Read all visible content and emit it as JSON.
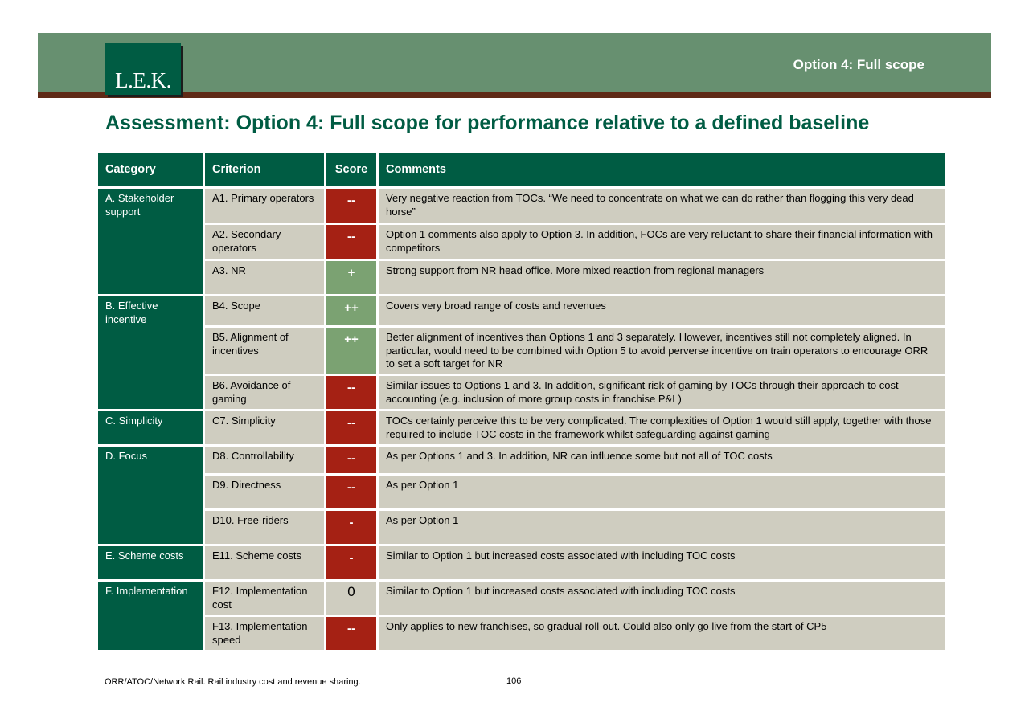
{
  "header": {
    "logo_text": "L.E.K.",
    "section_label": "Option 4: Full scope"
  },
  "title": "Assessment: Option 4: Full scope for performance relative to a defined baseline",
  "table": {
    "columns": {
      "category": "Category",
      "criterion": "Criterion",
      "score": "Score",
      "comments": "Comments"
    },
    "groups": [
      {
        "category": "A. Stakeholder support",
        "rows": [
          {
            "criterion": "A1. Primary operators",
            "score": "--",
            "tone": "neg",
            "comment": "Very negative reaction from TOCs. “We need to concentrate on what we can do rather than flogging this very dead horse”"
          },
          {
            "criterion": "A2. Secondary operators",
            "score": "--",
            "tone": "neg",
            "comment": "Option 1 comments also apply to Option 3. In addition, FOCs are very reluctant to share their financial information with competitors"
          },
          {
            "criterion": "A3. NR",
            "score": "+",
            "tone": "pos",
            "comment": "Strong support from NR head office. More mixed reaction from regional managers"
          }
        ]
      },
      {
        "category": "B. Effective incentive",
        "rows": [
          {
            "criterion": "B4. Scope",
            "score": "++",
            "tone": "pos",
            "comment": "Covers very broad range of costs and revenues"
          },
          {
            "criterion": "B5. Alignment of incentives",
            "score": "++",
            "tone": "pos",
            "comment": "Better alignment of incentives than Options 1 and 3 separately. However, incentives still not completely aligned. In particular, would need to be combined with Option 5 to avoid perverse incentive on train operators to encourage ORR to set a soft target for NR"
          },
          {
            "criterion": "B6. Avoidance of gaming",
            "score": "--",
            "tone": "neg",
            "comment": "Similar issues to Options 1 and 3. In addition, significant risk of gaming by TOCs through their approach to cost accounting (e.g. inclusion of more group costs in franchise P&L)"
          }
        ]
      },
      {
        "category": "C. Simplicity",
        "rows": [
          {
            "criterion": "C7. Simplicity",
            "score": "--",
            "tone": "neg",
            "comment": "TOCs certainly perceive this to be very complicated. The complexities of Option 1 would still apply, together with those required to include TOC costs in the framework whilst safeguarding against gaming"
          }
        ]
      },
      {
        "category": "D. Focus",
        "rows": [
          {
            "criterion": "D8. Controllability",
            "score": "--",
            "tone": "neg",
            "comment": "As per Options 1 and 3. In addition, NR can influence some but not all of TOC costs"
          },
          {
            "criterion": "D9. Directness",
            "score": "--",
            "tone": "neg",
            "comment": "As per Option 1"
          },
          {
            "criterion": "D10. Free-riders",
            "score": "-",
            "tone": "neg",
            "comment": "As per Option 1"
          }
        ]
      },
      {
        "category": "E. Scheme costs",
        "rows": [
          {
            "criterion": "E11. Scheme costs",
            "score": "-",
            "tone": "neg",
            "comment": "Similar to Option 1 but increased costs associated with including TOC costs"
          }
        ]
      },
      {
        "category": "F. Implementation",
        "rows": [
          {
            "criterion": "F12. Implementation cost",
            "score": "0",
            "tone": "neu",
            "comment": "Similar to Option 1 but increased costs associated with including TOC costs"
          },
          {
            "criterion": "F13. Implementation speed",
            "score": "--",
            "tone": "neg",
            "comment": "Only applies to new franchises, so gradual roll-out. Could also only go live from the start of CP5"
          }
        ]
      }
    ]
  },
  "footer": {
    "source": "ORR/ATOC/Network Rail.  Rail industry cost and revenue sharing.",
    "page_number": "106"
  },
  "colors": {
    "banner_green": "#679070",
    "banner_stripe": "#5f2a17",
    "dark_green": "#005c43",
    "cell_grey": "#cfcdc0",
    "score_negative": "#a52114",
    "score_positive": "#7ba272"
  }
}
